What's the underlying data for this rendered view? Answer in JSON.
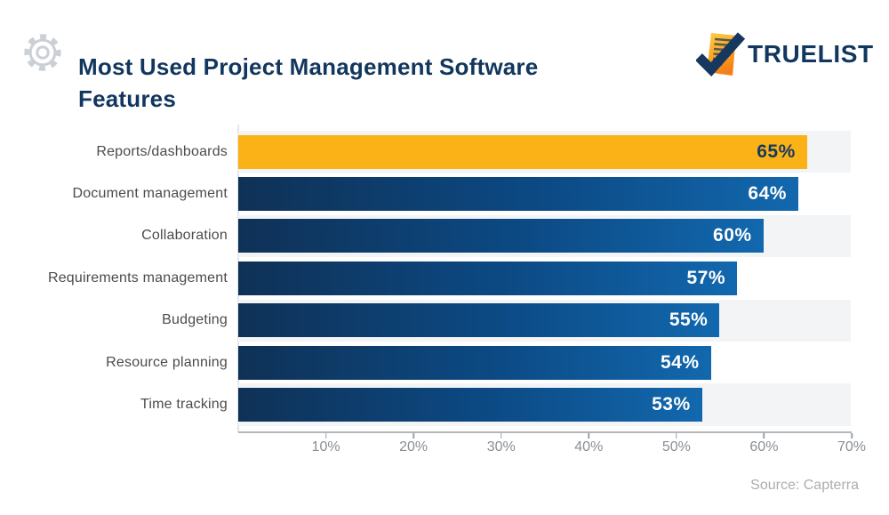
{
  "header": {
    "title": "Most Used Project Management Software Features",
    "brand": "TRUELIST"
  },
  "chart_data": {
    "type": "bar",
    "orientation": "horizontal",
    "title": "Most Used Project Management Software Features",
    "categories": [
      "Reports/dashboards",
      "Document management",
      "Collaboration",
      "Requirements management",
      "Budgeting",
      "Resource planning",
      "Time tracking"
    ],
    "values": [
      65,
      64,
      60,
      57,
      55,
      54,
      53
    ],
    "value_labels": [
      "65%",
      "64%",
      "60%",
      "57%",
      "55%",
      "54%",
      "53%"
    ],
    "xlim": [
      0,
      70
    ],
    "x_ticks": [
      "10%",
      "20%",
      "30%",
      "40%",
      "50%",
      "60%",
      "70%"
    ],
    "grid": false,
    "legend": false,
    "highlight_index": 0,
    "colors": {
      "highlight_bar": "#FBB216",
      "bar_gradient_start": "#0F3156",
      "bar_gradient_mid": "#0C4A85",
      "bar_gradient_end": "#1268AE",
      "highlight_value_text": "#15395F",
      "value_text": "#FFFFFF",
      "row_stripe": "#F3F4F6",
      "title_navy": "#12375E",
      "accent_orange": "#F7A823"
    }
  },
  "footer": {
    "source": "Source: Capterra"
  }
}
